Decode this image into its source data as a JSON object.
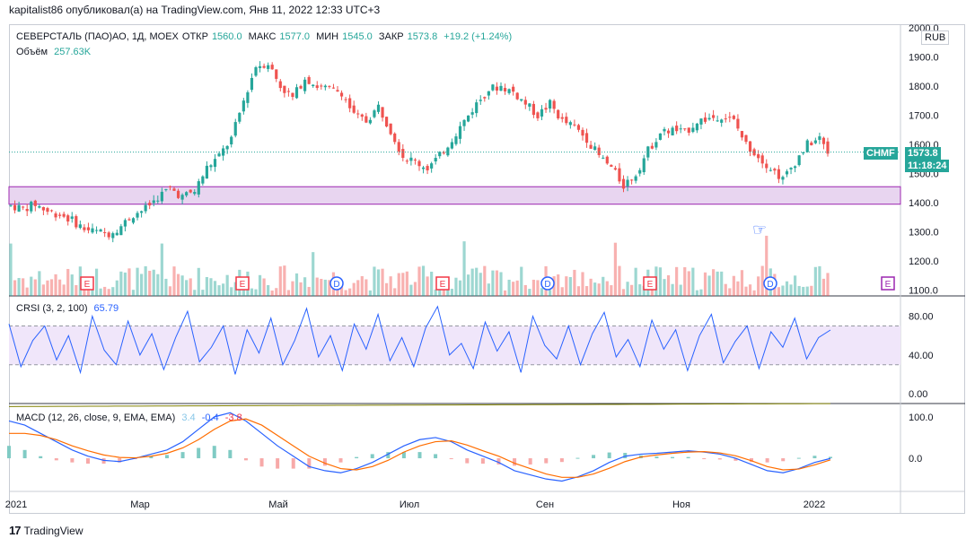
{
  "header": {
    "published": "kapitalist86 опубликовал(а) на TradingView.com, Янв 11, 2022 12:33 UTC+3"
  },
  "footer": {
    "brand": "TradingView",
    "logo": "17"
  },
  "currency": "RUB",
  "price_legend": {
    "symbol": "СЕВЕРСТАЛЬ (ПАО)АО, 1Д, MOEX",
    "open_label": "ОТКР",
    "open": "1560.0",
    "high_label": "МАКС",
    "high": "1577.0",
    "low_label": "МИН",
    "low": "1545.0",
    "close_label": "ЗАКР",
    "close": "1573.8",
    "change": "+19.2 (+1.24%)",
    "volume_label": "Объём",
    "volume": "257.63K"
  },
  "price_badge": {
    "ticker": "CHMF",
    "price": "1573.8",
    "countdown": "11:18:24"
  },
  "crsi_legend": {
    "name": "CRSI (3, 2, 100)",
    "value": "65.79"
  },
  "macd_legend": {
    "name": "MACD (12, 26, close, 9, EMA, EMA)",
    "hist": "3.4",
    "macd": "-0.4",
    "signal": "-3.8"
  },
  "chart_data": {
    "type": "candlestick",
    "x_axis_labels": [
      "2021",
      "Мар",
      "Май",
      "Июл",
      "Сен",
      "Ноя",
      "2022"
    ],
    "price_axis": {
      "ticks": [
        "1100.0",
        "1200.0",
        "1300.0",
        "1400.0",
        "1500.0",
        "1600.0",
        "1700.0",
        "1800.0",
        "1900.0",
        "2000.0"
      ],
      "range": [
        1080,
        2010
      ]
    },
    "crsi_axis": {
      "ticks": [
        "0.00",
        "40.00",
        "80.00"
      ],
      "range": [
        -10,
        100
      ]
    },
    "macd_axis": {
      "ticks": [
        "0.0",
        "100.0"
      ],
      "range": [
        -80,
        130
      ]
    },
    "support_zone": [
      1395,
      1455
    ],
    "close_path": [
      [
        0,
        1390
      ],
      [
        6,
        1380
      ],
      [
        12,
        1395
      ],
      [
        18,
        1370
      ],
      [
        24,
        1360
      ],
      [
        30,
        1340
      ],
      [
        36,
        1310
      ],
      [
        42,
        1300
      ],
      [
        48,
        1295
      ],
      [
        54,
        1320
      ],
      [
        60,
        1360
      ],
      [
        66,
        1380
      ],
      [
        72,
        1420
      ],
      [
        78,
        1450
      ],
      [
        84,
        1420
      ],
      [
        90,
        1440
      ],
      [
        96,
        1520
      ],
      [
        102,
        1560
      ],
      [
        108,
        1620
      ],
      [
        114,
        1750
      ],
      [
        120,
        1870
      ],
      [
        126,
        1880
      ],
      [
        132,
        1800
      ],
      [
        138,
        1760
      ],
      [
        144,
        1830
      ],
      [
        150,
        1800
      ],
      [
        156,
        1790
      ],
      [
        162,
        1780
      ],
      [
        168,
        1700
      ],
      [
        174,
        1680
      ],
      [
        180,
        1730
      ],
      [
        186,
        1650
      ],
      [
        192,
        1560
      ],
      [
        198,
        1540
      ],
      [
        204,
        1520
      ],
      [
        210,
        1560
      ],
      [
        216,
        1620
      ],
      [
        222,
        1680
      ],
      [
        228,
        1740
      ],
      [
        234,
        1790
      ],
      [
        240,
        1800
      ],
      [
        246,
        1780
      ],
      [
        252,
        1740
      ],
      [
        258,
        1700
      ],
      [
        264,
        1740
      ],
      [
        270,
        1680
      ],
      [
        276,
        1660
      ],
      [
        282,
        1620
      ],
      [
        288,
        1560
      ],
      [
        294,
        1520
      ],
      [
        300,
        1460
      ],
      [
        306,
        1500
      ],
      [
        312,
        1580
      ],
      [
        318,
        1640
      ],
      [
        324,
        1650
      ],
      [
        330,
        1640
      ],
      [
        336,
        1680
      ],
      [
        342,
        1690
      ],
      [
        348,
        1700
      ],
      [
        354,
        1680
      ],
      [
        360,
        1600
      ],
      [
        366,
        1560
      ],
      [
        372,
        1520
      ],
      [
        378,
        1480
      ],
      [
        384,
        1540
      ],
      [
        390,
        1600
      ],
      [
        396,
        1620
      ],
      [
        400,
        1573.8
      ]
    ],
    "crsi_values": [
      72,
      28,
      55,
      70,
      35,
      60,
      22,
      80,
      45,
      30,
      75,
      40,
      62,
      25,
      58,
      85,
      33,
      48,
      70,
      20,
      66,
      42,
      78,
      30,
      55,
      88,
      38,
      60,
      24,
      72,
      46,
      82,
      34,
      58,
      28,
      68,
      90,
      40,
      52,
      26,
      74,
      44,
      64,
      22,
      80,
      50,
      36,
      70,
      30,
      62,
      84,
      38,
      56,
      28,
      76,
      46,
      66,
      24,
      60,
      82,
      32,
      54,
      70,
      26,
      64,
      48,
      78,
      36,
      58,
      65.79
    ],
    "macd_line": [
      90,
      80,
      60,
      40,
      20,
      5,
      -5,
      -8,
      0,
      10,
      20,
      40,
      70,
      100,
      110,
      90,
      60,
      30,
      5,
      -20,
      -30,
      -35,
      -25,
      -10,
      10,
      30,
      45,
      50,
      40,
      20,
      5,
      -10,
      -30,
      -40,
      -50,
      -55,
      -45,
      -30,
      -10,
      5,
      10,
      12,
      15,
      18,
      15,
      10,
      0,
      -15,
      -30,
      -35,
      -25,
      -10,
      -0.4
    ],
    "signal_line": [
      60,
      60,
      55,
      45,
      30,
      18,
      8,
      2,
      1,
      5,
      12,
      25,
      45,
      70,
      90,
      95,
      80,
      55,
      30,
      5,
      -12,
      -25,
      -28,
      -20,
      -5,
      15,
      30,
      40,
      42,
      32,
      18,
      5,
      -12,
      -25,
      -38,
      -46,
      -46,
      -38,
      -24,
      -8,
      3,
      8,
      12,
      15,
      16,
      13,
      6,
      -6,
      -20,
      -28,
      -26,
      -16,
      -3.8
    ],
    "volume_max": 800
  }
}
